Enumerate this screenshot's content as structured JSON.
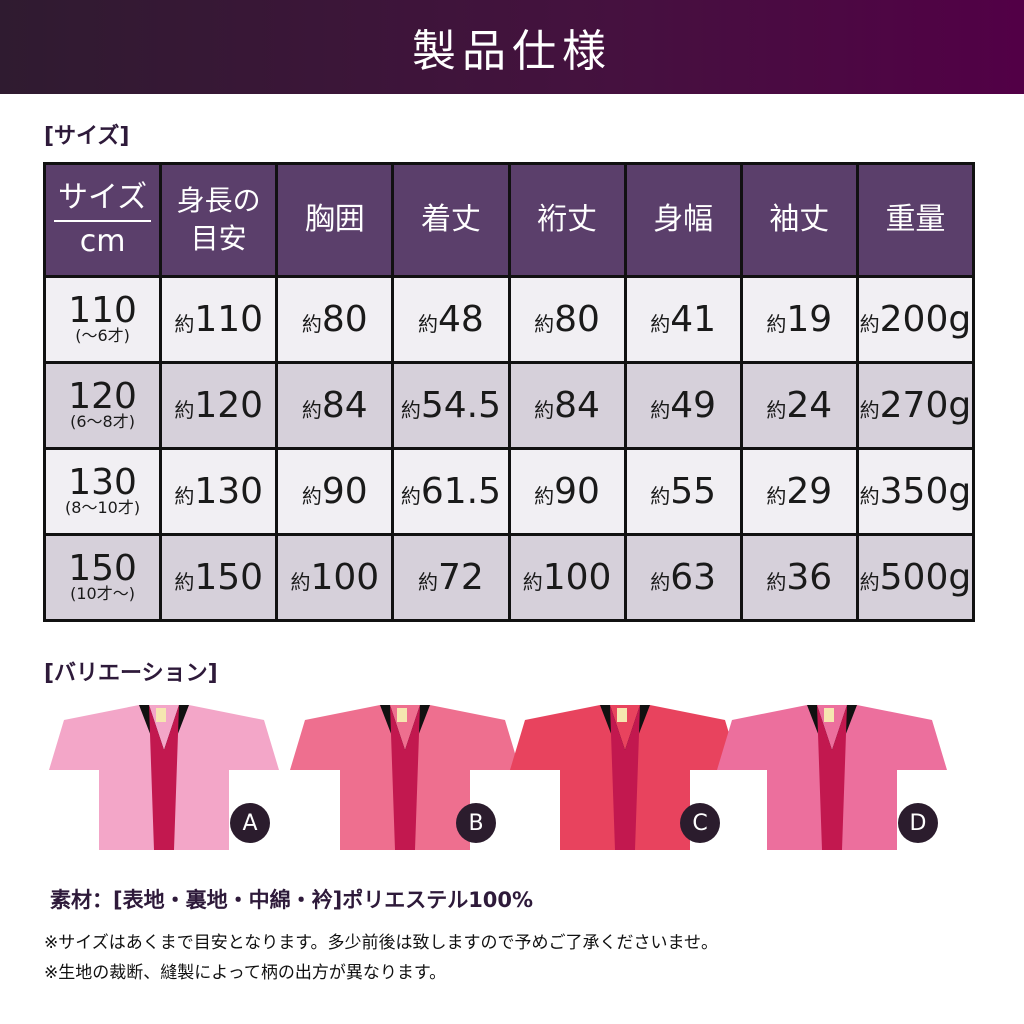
{
  "header": {
    "title": "製品仕様"
  },
  "size_section": {
    "label": "[サイズ]"
  },
  "table": {
    "headers": [
      {
        "top": "サイズ",
        "bottom": "cm"
      },
      "身長の目安",
      "胸囲",
      "着丈",
      "裄丈",
      "身幅",
      "袖丈",
      "重量"
    ],
    "prefix": "約",
    "rows": [
      {
        "size": "110",
        "age": "(～6才)",
        "cells": [
          "110",
          "80",
          "48",
          "80",
          "41",
          "19",
          "200g"
        ]
      },
      {
        "size": "120",
        "age": "(6～8才)",
        "cells": [
          "120",
          "84",
          "54.5",
          "84",
          "49",
          "24",
          "270g"
        ]
      },
      {
        "size": "130",
        "age": "(8～10才)",
        "cells": [
          "130",
          "90",
          "61.5",
          "90",
          "55",
          "29",
          "350g"
        ]
      },
      {
        "size": "150",
        "age": "(10才～)",
        "cells": [
          "150",
          "100",
          "72",
          "100",
          "63",
          "36",
          "500g"
        ]
      }
    ]
  },
  "variation_section": {
    "label": "[バリエーション]",
    "items": [
      {
        "letter": "A",
        "color": "#f3a6c8"
      },
      {
        "letter": "B",
        "color": "#ee6f8f"
      },
      {
        "letter": "C",
        "color": "#e8435e"
      },
      {
        "letter": "D",
        "color": "#ec6f9d"
      }
    ]
  },
  "material": "素材：[表地・裏地・中綿・衿]ポリエステル100%",
  "notes": [
    "※サイズはあくまで目安となります。多少前後は致しますので予めご了承くださいませ。",
    "※生地の裁断、縫製によって柄の出方が異なります。"
  ]
}
